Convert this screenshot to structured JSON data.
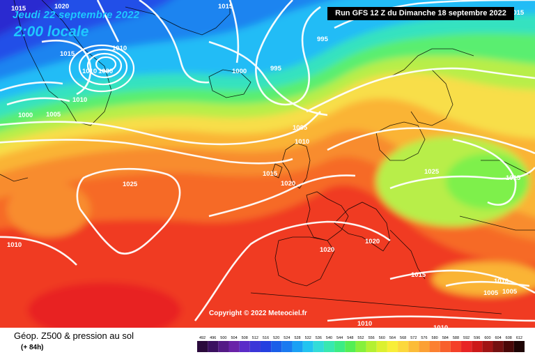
{
  "header": {
    "date": "Jeudi 22 septembre 2022",
    "time": "2:00 locale",
    "run": "Run GFS 12 Z du Dimanche 18 septembre 2022"
  },
  "map": {
    "copyright": "Copyright © 2022 Meteociel.fr",
    "isobar_labels": [
      {
        "id": "iso-1015-nw",
        "text": "1015"
      },
      {
        "id": "iso-1020-top",
        "text": "1020"
      },
      {
        "id": "iso-1015-top",
        "text": "1015"
      },
      {
        "id": "iso-1010-greenland",
        "text": "1010"
      },
      {
        "id": "iso-1010-high",
        "text": "1010"
      },
      {
        "id": "iso-1030-high",
        "text": "1030"
      },
      {
        "id": "iso-1015-left",
        "text": "1015"
      },
      {
        "id": "iso-1010-left",
        "text": "1010"
      },
      {
        "id": "iso-1000-left",
        "text": "1000"
      },
      {
        "id": "iso-1005-left",
        "text": "1005"
      },
      {
        "id": "iso-995-top",
        "text": "995"
      },
      {
        "id": "iso-995-low",
        "text": "995"
      },
      {
        "id": "iso-1000-low",
        "text": "1000"
      },
      {
        "id": "iso-1005-mid",
        "text": "1005"
      },
      {
        "id": "iso-1010-mid",
        "text": "1010"
      },
      {
        "id": "iso-1015-uk",
        "text": "1015"
      },
      {
        "id": "iso-1020-uk",
        "text": "1020"
      },
      {
        "id": "iso-1025-atl",
        "text": "1025"
      },
      {
        "id": "iso-1010-west",
        "text": "1010"
      },
      {
        "id": "iso-1025-centre",
        "text": "1025"
      },
      {
        "id": "iso-1015-east",
        "text": "1015"
      },
      {
        "id": "iso-1020-spain",
        "text": "1020"
      },
      {
        "id": "iso-1020-alps",
        "text": "1020"
      },
      {
        "id": "iso-1015-balkans",
        "text": "1015"
      },
      {
        "id": "iso-1010-east",
        "text": "1010"
      },
      {
        "id": "iso-1005-east-a",
        "text": "1005"
      },
      {
        "id": "iso-1005-east-b",
        "text": "1005"
      },
      {
        "id": "iso-1010-med",
        "text": "1010"
      },
      {
        "id": "iso-1010-africa",
        "text": "1010"
      },
      {
        "id": "iso-1015-ne",
        "text": "1015"
      }
    ]
  },
  "legend": {
    "title": "Géop. Z500 & pression au sol",
    "step": "(+ 84h)",
    "scale_values": [
      492,
      496,
      500,
      504,
      508,
      512,
      516,
      520,
      524,
      528,
      532,
      536,
      540,
      544,
      548,
      552,
      556,
      560,
      564,
      568,
      572,
      576,
      580,
      584,
      588,
      592,
      596,
      600,
      604,
      608,
      612
    ],
    "scale_colors": [
      "#2a0a3c",
      "#3b1060",
      "#541a86",
      "#6a22a8",
      "#5b2cc8",
      "#3b36d8",
      "#2440e0",
      "#1a5ee8",
      "#1a7af0",
      "#1aa0f4",
      "#22c4f0",
      "#32dcd8",
      "#38e8b0",
      "#3cec84",
      "#54ee54",
      "#86f03c",
      "#b4f032",
      "#dcf030",
      "#f8ee38",
      "#fcd83c",
      "#fcbc38",
      "#fca034",
      "#fc8030",
      "#f8602c",
      "#f44028",
      "#e82424",
      "#cc1818",
      "#a01414",
      "#741010",
      "#4a0808",
      "#1e0404"
    ],
    "colors": {
      "very_low": "#1e3cf0",
      "low": "#22b8f8",
      "mid": "#38e8a8",
      "warm": "#f8e050",
      "hot": "#f47a28",
      "very_hot": "#f03022"
    }
  }
}
